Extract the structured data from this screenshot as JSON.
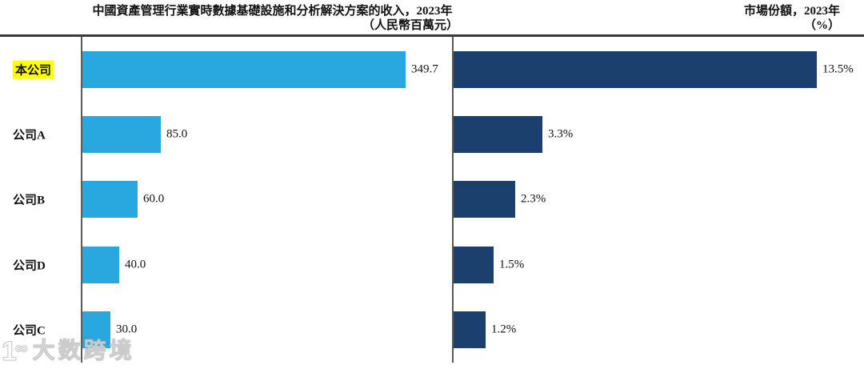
{
  "titles": {
    "left_line1": "中國資產管理行業實時數據基礎設施和分析解決方案的收入，2023年",
    "left_line2": "（人民幣百萬元）",
    "right_line1": "市場份額，2023年",
    "right_line2": "（%）"
  },
  "chart_data": {
    "type": "bar",
    "orientation": "horizontal",
    "grid": false,
    "legend": false,
    "categories": [
      "本公司",
      "公司A",
      "公司B",
      "公司D",
      "公司C"
    ],
    "highlight_category": "本公司",
    "series": [
      {
        "name": "中國資產管理行業實時數據基礎設施和分析解決方案的收入，2023年（人民幣百萬元）",
        "values": [
          349.7,
          85.0,
          60.0,
          40.0,
          30.0
        ],
        "value_labels": [
          "349.7",
          "85.0",
          "60.0",
          "40.0",
          "30.0"
        ],
        "color": "#29a7df",
        "xlim": [
          0,
          360
        ]
      },
      {
        "name": "市場份額，2023年（%）",
        "values": [
          13.5,
          3.3,
          2.3,
          1.5,
          1.2
        ],
        "value_labels": [
          "13.5%",
          "3.3%",
          "2.3%",
          "1.5%",
          "1.2%"
        ],
        "color": "#1b406e",
        "xlim": [
          0,
          14.5
        ]
      }
    ]
  },
  "colors": {
    "revenue_bar": "#29a7df",
    "share_bar": "#1b406e",
    "highlight": "#ffff00",
    "top_rule": "#3a3a3a",
    "axis": "#5a5a5a"
  },
  "watermark": {
    "logo": "1",
    "logo_sup": "∞",
    "text": "大数跨境"
  }
}
